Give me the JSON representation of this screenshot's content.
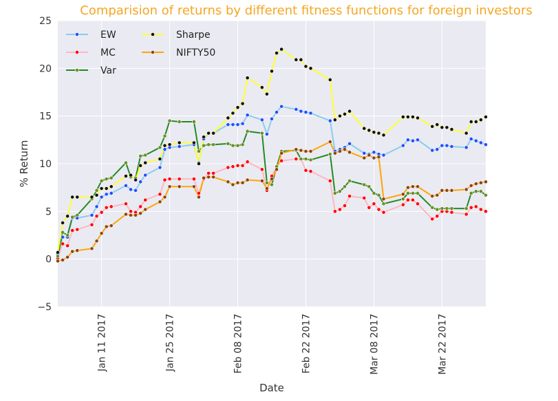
{
  "chart_data": {
    "type": "line",
    "title": "Comparision of returns by different fitness functions for foreign investors",
    "xlabel": "Date",
    "ylabel": "% Return",
    "ylim": [
      -5,
      25
    ],
    "xlim": [
      "2017-01-02",
      "2017-03-31"
    ],
    "yticks": [
      "−5",
      "0",
      "5",
      "10",
      "15",
      "20",
      "25"
    ],
    "xticks": [
      "Jan 11 2017",
      "Jan 25 2017",
      "Feb 08 2017",
      "Feb 22 2017",
      "Mar 08 2017",
      "Mar 22 2017"
    ],
    "grid": true,
    "legend_position": "top-left",
    "x": [
      "2017-01-02",
      "2017-01-03",
      "2017-01-04",
      "2017-01-05",
      "2017-01-06",
      "2017-01-09",
      "2017-01-10",
      "2017-01-11",
      "2017-01-12",
      "2017-01-13",
      "2017-01-16",
      "2017-01-17",
      "2017-01-18",
      "2017-01-19",
      "2017-01-20",
      "2017-01-23",
      "2017-01-24",
      "2017-01-25",
      "2017-01-27",
      "2017-01-30",
      "2017-01-31",
      "2017-02-01",
      "2017-02-02",
      "2017-02-03",
      "2017-02-06",
      "2017-02-07",
      "2017-02-08",
      "2017-02-09",
      "2017-02-10",
      "2017-02-13",
      "2017-02-14",
      "2017-02-15",
      "2017-02-16",
      "2017-02-17",
      "2017-02-20",
      "2017-02-21",
      "2017-02-22",
      "2017-02-23",
      "2017-02-27",
      "2017-02-28",
      "2017-03-01",
      "2017-03-02",
      "2017-03-03",
      "2017-03-06",
      "2017-03-07",
      "2017-03-08",
      "2017-03-09",
      "2017-03-10",
      "2017-03-14",
      "2017-03-15",
      "2017-03-16",
      "2017-03-17",
      "2017-03-20",
      "2017-03-21",
      "2017-03-22",
      "2017-03-23",
      "2017-03-24",
      "2017-03-27",
      "2017-03-28",
      "2017-03-29",
      "2017-03-30",
      "2017-03-31"
    ],
    "series": [
      {
        "name": "EW",
        "color": "#87ceeb",
        "marker_color": "#1f4fff",
        "values": [
          0.5,
          2.3,
          2.3,
          4.3,
          4.3,
          4.6,
          5.5,
          6.5,
          6.8,
          6.9,
          7.7,
          7.3,
          7.2,
          8.1,
          8.8,
          9.6,
          11.5,
          11.7,
          11.8,
          12.0,
          10.1,
          12.6,
          13.2,
          13.2,
          14.1,
          14.1,
          14.1,
          14.2,
          15.1,
          14.6,
          13.1,
          14.7,
          15.4,
          16.0,
          15.7,
          15.5,
          15.4,
          15.3,
          14.5,
          11.3,
          11.5,
          11.7,
          12.1,
          11.1,
          11.0,
          11.2,
          11.0,
          10.9,
          11.9,
          12.5,
          12.4,
          12.5,
          11.4,
          11.5,
          11.9,
          11.9,
          11.8,
          11.7,
          12.6,
          12.4,
          12.2,
          12.0
        ]
      },
      {
        "name": "MC",
        "color": "#ffb6c1",
        "marker_color": "#ff0000",
        "values": [
          0.1,
          1.6,
          1.4,
          3.0,
          3.1,
          3.6,
          4.5,
          4.9,
          5.4,
          5.5,
          5.8,
          5.0,
          4.9,
          5.5,
          6.2,
          6.8,
          8.3,
          8.4,
          8.4,
          8.4,
          6.9,
          8.4,
          9.0,
          9.0,
          9.6,
          9.7,
          9.8,
          9.8,
          10.2,
          9.4,
          7.2,
          8.7,
          9.7,
          10.3,
          10.5,
          10.5,
          9.3,
          9.2,
          8.2,
          5.0,
          5.2,
          5.6,
          6.6,
          6.4,
          5.4,
          5.8,
          5.2,
          4.9,
          5.7,
          6.2,
          6.2,
          5.8,
          4.2,
          4.5,
          5.0,
          5.0,
          4.9,
          4.7,
          5.4,
          5.5,
          5.2,
          5.0
        ]
      },
      {
        "name": "Var",
        "color": "#228b22",
        "marker_color": "#6b8e23",
        "values": [
          0.3,
          2.8,
          2.5,
          4.4,
          4.6,
          6.3,
          7.2,
          8.2,
          8.4,
          8.5,
          10.1,
          8.6,
          8.5,
          10.8,
          10.9,
          11.7,
          12.9,
          14.5,
          14.4,
          14.4,
          11.3,
          11.9,
          12.0,
          12.0,
          12.1,
          11.9,
          11.9,
          12.0,
          13.4,
          13.2,
          8.0,
          7.8,
          9.7,
          11.3,
          11.4,
          10.5,
          10.5,
          10.4,
          11.0,
          6.9,
          7.1,
          7.6,
          8.2,
          7.8,
          7.6,
          6.9,
          6.7,
          5.8,
          6.3,
          6.9,
          6.9,
          6.9,
          5.4,
          5.2,
          5.3,
          5.3,
          5.3,
          5.3,
          6.9,
          7.1,
          7.1,
          6.7
        ]
      },
      {
        "name": "Sharpe",
        "color": "#ffff33",
        "marker_color": "#111111",
        "values": [
          0.7,
          3.8,
          4.5,
          6.5,
          6.5,
          6.5,
          6.7,
          7.4,
          7.4,
          7.6,
          8.7,
          8.8,
          8.3,
          9.8,
          10.1,
          10.5,
          11.9,
          12.0,
          12.2,
          12.2,
          10.0,
          12.8,
          13.2,
          13.2,
          14.8,
          15.3,
          15.9,
          16.3,
          19.0,
          18.0,
          17.3,
          19.7,
          21.6,
          22.0,
          20.9,
          20.9,
          20.2,
          20.0,
          18.8,
          14.6,
          15.0,
          15.2,
          15.5,
          13.7,
          13.5,
          13.3,
          13.2,
          13.0,
          14.9,
          14.9,
          14.9,
          14.8,
          13.9,
          14.1,
          13.8,
          13.8,
          13.6,
          13.2,
          14.4,
          14.4,
          14.6,
          14.9
        ]
      },
      {
        "name": "NIFTY50",
        "color": "#ffa500",
        "marker_color": "#8b4513",
        "values": [
          -0.2,
          -0.1,
          0.2,
          0.8,
          0.9,
          1.1,
          1.9,
          2.7,
          3.4,
          3.5,
          4.7,
          4.6,
          4.6,
          4.8,
          5.2,
          6.0,
          6.5,
          7.6,
          7.6,
          7.6,
          6.5,
          8.5,
          8.6,
          8.6,
          8.1,
          7.8,
          8.0,
          8.0,
          8.3,
          8.2,
          7.4,
          8.4,
          9.4,
          11.1,
          11.5,
          11.4,
          11.3,
          11.3,
          12.3,
          11.1,
          11.3,
          11.5,
          11.2,
          10.6,
          10.9,
          10.6,
          10.7,
          6.3,
          6.8,
          7.5,
          7.6,
          7.6,
          6.6,
          6.7,
          7.2,
          7.2,
          7.2,
          7.3,
          7.7,
          7.9,
          8.0,
          8.1
        ]
      }
    ]
  }
}
